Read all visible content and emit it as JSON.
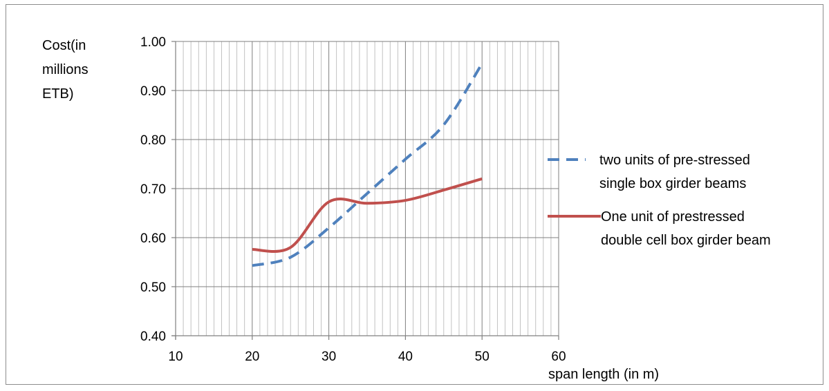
{
  "chart_data": {
    "type": "line",
    "ylabel": [
      "Cost(in",
      "millions",
      "ETB)"
    ],
    "xlabel": "span length (in m)",
    "xlim": [
      10,
      60
    ],
    "ylim": [
      0.4,
      1.0
    ],
    "x_ticks": [
      "10",
      "20",
      "30",
      "40",
      "50",
      "60"
    ],
    "y_ticks": [
      "0.40",
      "0.50",
      "0.60",
      "0.70",
      "0.80",
      "0.90",
      "1.00"
    ],
    "grid": true,
    "legend_position": "right",
    "series": [
      {
        "name": [
          "two units of  pre-stressed",
          "single box girder beams"
        ],
        "color": "#4f81bd",
        "style": "dashed",
        "x": [
          20,
          25,
          30,
          35,
          40,
          45,
          50
        ],
        "y": [
          0.543,
          0.56,
          0.62,
          0.69,
          0.76,
          0.83,
          0.955
        ]
      },
      {
        "name": [
          "One unit of prestressed",
          "double cell box girder beam"
        ],
        "color": "#c0504d",
        "style": "solid",
        "x": [
          20,
          25,
          30,
          35,
          40,
          45,
          50
        ],
        "y": [
          0.576,
          0.58,
          0.673,
          0.67,
          0.676,
          0.697,
          0.72
        ]
      }
    ]
  }
}
